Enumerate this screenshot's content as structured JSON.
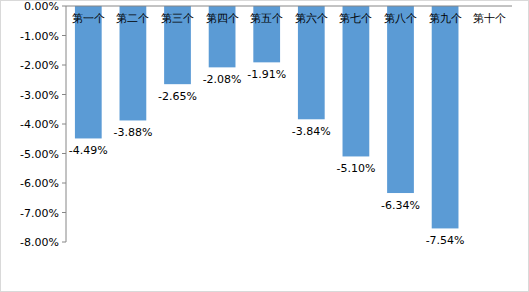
{
  "chart_data": {
    "type": "bar",
    "categories": [
      "第一个",
      "第二个",
      "第三个",
      "第四个",
      "第五个",
      "第六个",
      "第七个",
      "第八个",
      "第九个",
      "第十个"
    ],
    "values": [
      -4.49,
      -3.88,
      -2.65,
      -2.08,
      -1.91,
      -3.84,
      -5.1,
      -6.34,
      -7.54,
      null
    ],
    "value_labels": [
      "-4.49%",
      "-3.88%",
      "-2.65%",
      "-2.08%",
      "-1.91%",
      "-3.84%",
      "-5.10%",
      "-6.34%",
      "-7.54%",
      null
    ],
    "color": "#5b9bd5",
    "ylim": [
      -8,
      0
    ],
    "yticks": [
      {
        "value": 0,
        "label": "0.00%"
      },
      {
        "value": -1,
        "label": "-1.00%"
      },
      {
        "value": -2,
        "label": "-2.00%"
      },
      {
        "value": -3,
        "label": "-3.00%"
      },
      {
        "value": -4,
        "label": "-4.00%"
      },
      {
        "value": -5,
        "label": "-5.00%"
      },
      {
        "value": -6,
        "label": "-6.00%"
      },
      {
        "value": -7,
        "label": "-7.00%"
      },
      {
        "value": -8,
        "label": "-8.00%"
      }
    ],
    "grid": false,
    "data_labels": true
  }
}
